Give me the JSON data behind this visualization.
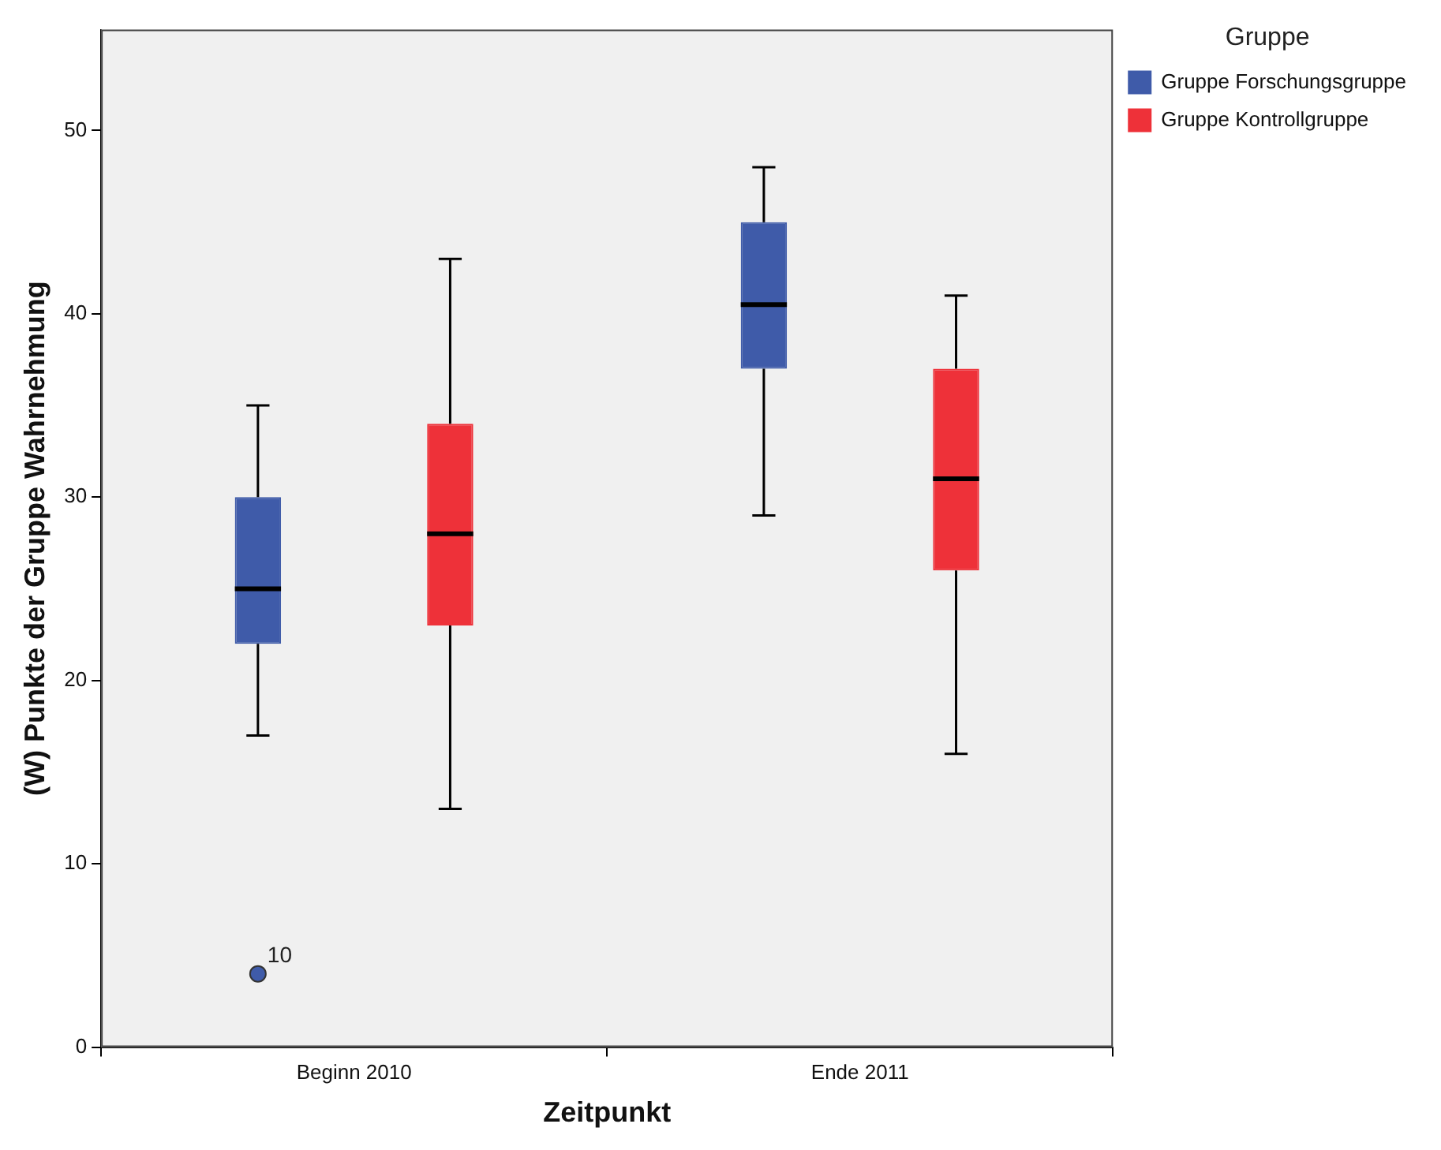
{
  "chart_data": {
    "type": "box",
    "xlabel": "Zeitpunkt",
    "ylabel": "(W) Punkte der Gruppe Wahrnehmung",
    "legend_title": "Gruppe",
    "legend": "top right",
    "categories": [
      "Beginn 2010",
      "Ende 2011"
    ],
    "ylim": [
      0,
      55.5
    ],
    "yticks": [
      0,
      10,
      20,
      30,
      40,
      50
    ],
    "series": [
      {
        "name": "Gruppe Forschungsgruppe",
        "color": "#3f5ba9",
        "boxes": [
          {
            "low": 17,
            "q1": 22,
            "median": 25,
            "q3": 30,
            "high": 35,
            "outliers": [
              4
            ]
          },
          {
            "low": 29,
            "q1": 37,
            "median": 40.5,
            "q3": 45,
            "high": 48
          }
        ]
      },
      {
        "name": "Gruppe Kontrollgruppe",
        "color": "#ee3139",
        "boxes": [
          {
            "low": 13,
            "q1": 23,
            "median": 28,
            "q3": 34,
            "high": 43
          },
          {
            "low": 16,
            "q1": 26,
            "median": 31,
            "q3": 37,
            "high": 41
          }
        ]
      }
    ],
    "annotations": [
      "10"
    ]
  }
}
